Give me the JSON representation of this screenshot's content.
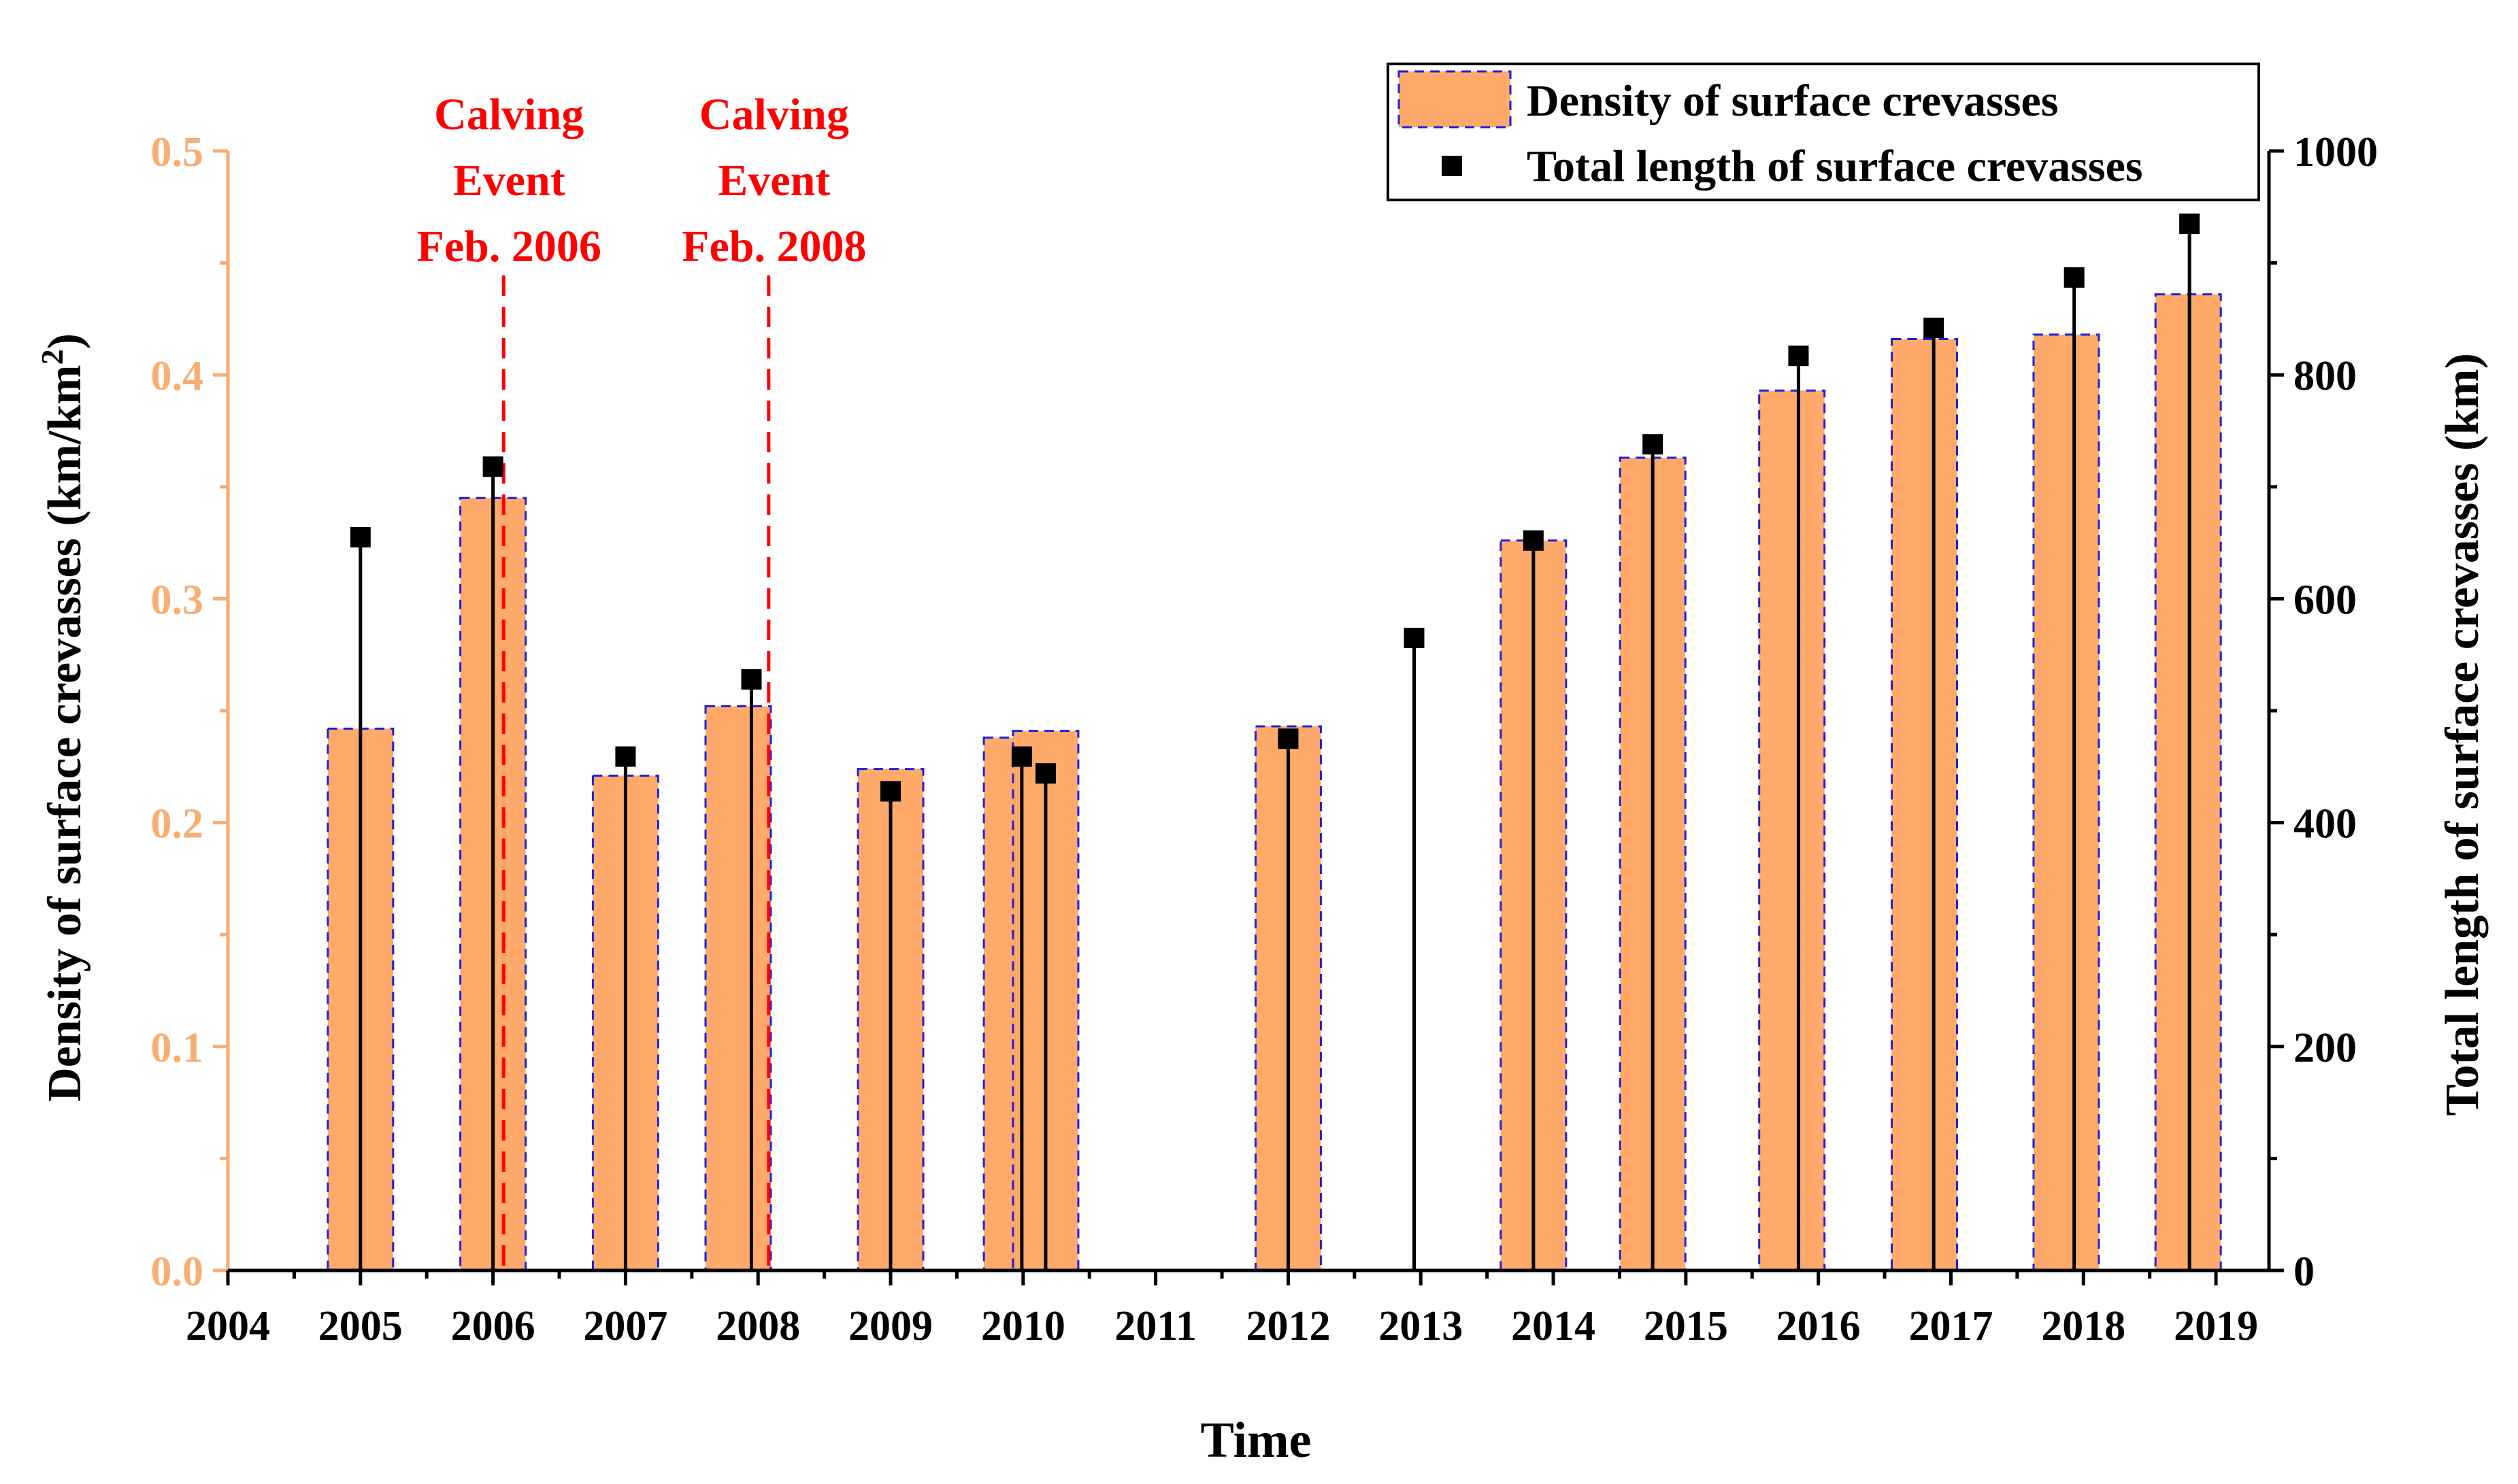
{
  "chart_data": {
    "type": "bar",
    "xlabel": "Time",
    "ylabel_left": "Density of surface crevasses (km/km²)",
    "ylabel_left_parts": {
      "pre": "Density of surface crevasses (km/km",
      "sup": "2",
      "post": ")"
    },
    "ylabel_right": "Total length of surface crevasses (km)",
    "ylim_left": [
      0,
      0.5
    ],
    "ylim_right": [
      0,
      1000
    ],
    "xlim": [
      2004,
      2019.4
    ],
    "x_ticks": [
      2004,
      2005,
      2006,
      2007,
      2008,
      2009,
      2010,
      2011,
      2012,
      2013,
      2014,
      2015,
      2016,
      2017,
      2018,
      2019
    ],
    "x_tick_labels": [
      "2004",
      "2005",
      "2006",
      "2007",
      "2008",
      "2009",
      "2010",
      "2011",
      "2012",
      "2013",
      "2014",
      "2015",
      "2016",
      "2017",
      "2018",
      "2019"
    ],
    "y_left_ticks": [
      0,
      0.1,
      0.2,
      0.3,
      0.4,
      0.5
    ],
    "y_left_tick_labels": [
      "0.0",
      "0.1",
      "0.2",
      "0.3",
      "0.4",
      "0.5"
    ],
    "y_right_ticks": [
      0,
      200,
      400,
      600,
      800,
      1000
    ],
    "y_right_tick_labels": [
      "0",
      "200",
      "400",
      "600",
      "800",
      "1000"
    ],
    "series": [
      {
        "name": "Density of surface crevasses",
        "axis": "left",
        "kind": "bar",
        "points": [
          {
            "x": 2005.0,
            "value": 0.242
          },
          {
            "x": 2006.0,
            "value": 0.345
          },
          {
            "x": 2007.0,
            "value": 0.221
          },
          {
            "x": 2007.85,
            "value": 0.252
          },
          {
            "x": 2009.0,
            "value": 0.224
          },
          {
            "x": 2009.95,
            "value": 0.238
          },
          {
            "x": 2010.17,
            "value": 0.241
          },
          {
            "x": 2012.0,
            "value": 0.243
          },
          {
            "x": 2013.85,
            "value": 0.326
          },
          {
            "x": 2014.75,
            "value": 0.363
          },
          {
            "x": 2015.8,
            "value": 0.393
          },
          {
            "x": 2016.8,
            "value": 0.416
          },
          {
            "x": 2017.87,
            "value": 0.418
          },
          {
            "x": 2018.79,
            "value": 0.436
          }
        ]
      },
      {
        "name": "Total length of surface crevasses",
        "axis": "right",
        "kind": "drop-point",
        "points": [
          {
            "x": 2005.0,
            "value": 655
          },
          {
            "x": 2006.0,
            "value": 718
          },
          {
            "x": 2007.0,
            "value": 459
          },
          {
            "x": 2007.95,
            "value": 528
          },
          {
            "x": 2009.0,
            "value": 428
          },
          {
            "x": 2009.99,
            "value": 459
          },
          {
            "x": 2010.17,
            "value": 444
          },
          {
            "x": 2012.0,
            "value": 475
          },
          {
            "x": 2012.95,
            "value": 565
          },
          {
            "x": 2013.85,
            "value": 652
          },
          {
            "x": 2014.75,
            "value": 738
          },
          {
            "x": 2015.85,
            "value": 817
          },
          {
            "x": 2016.87,
            "value": 842
          },
          {
            "x": 2017.93,
            "value": 887
          },
          {
            "x": 2018.8,
            "value": 935
          }
        ]
      }
    ],
    "annotations": [
      {
        "x": 2006.08,
        "lines": [
          "Calving",
          "Event",
          "Feb. 2006"
        ],
        "color": "#FF0000"
      },
      {
        "x": 2008.08,
        "lines": [
          "Calving",
          "Event",
          "Feb. 2008"
        ],
        "color": "#FF0000"
      }
    ],
    "legend": {
      "position": "top-right",
      "entries": [
        "Density of surface crevasses",
        "Total length of surface crevasses"
      ]
    },
    "colors": {
      "bar_fill": "#FFA96B",
      "bar_edge": "#1F1FDD",
      "left_axis": "#F7AE72",
      "right_axis": "#000000",
      "point": "#000000",
      "annotation": "#FF0000"
    }
  }
}
